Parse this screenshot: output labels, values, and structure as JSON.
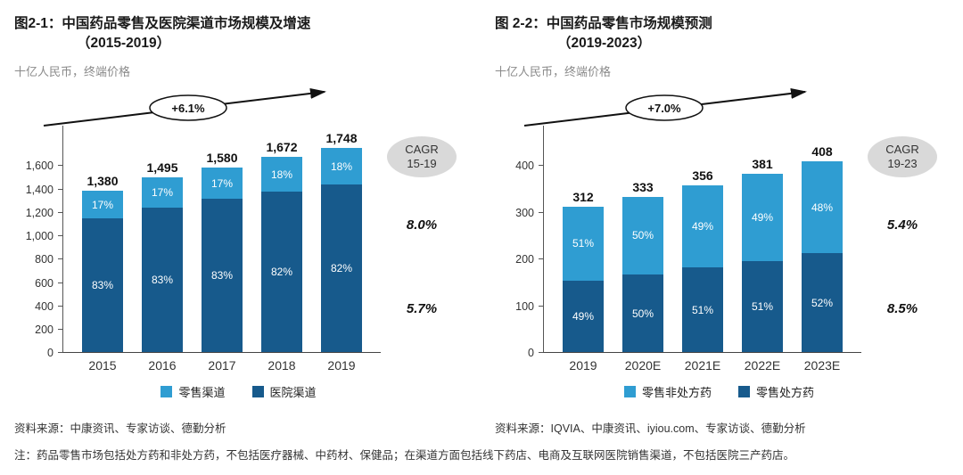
{
  "page": {
    "note": "注：药品零售市场包括处方药和非处方药，不包括医疗器械、中药材、保健品；在渠道方面包括线下药店、电商及互联网医院销售渠道，不包括医院三产药店。"
  },
  "chart_data": [
    {
      "type": "bar",
      "stacked": true,
      "title": "图2-1：中国药品零售及医院渠道市场规模及增速",
      "title_line2": "（2015-2019）",
      "unit_label": "十亿人民币，终端价格",
      "growth_label": "+6.1%",
      "cagr_label1": "CAGR",
      "cagr_label2": "15-19",
      "categories": [
        "2015",
        "2016",
        "2017",
        "2018",
        "2019"
      ],
      "totals": [
        1380,
        1495,
        1580,
        1672,
        1748
      ],
      "totals_display": [
        "1,380",
        "1,495",
        "1,580",
        "1,672",
        "1,748"
      ],
      "series": [
        {
          "name": "零售渠道",
          "color": "#2f9dd2",
          "pct": [
            17,
            17,
            17,
            18,
            18
          ],
          "cagr": "8.0%"
        },
        {
          "name": "医院渠道",
          "color": "#175a8c",
          "pct": [
            83,
            83,
            83,
            82,
            82
          ],
          "cagr": "5.7%"
        }
      ],
      "ylim": [
        0,
        1600
      ],
      "yticks": [
        "0",
        "200",
        "400",
        "600",
        "800",
        "1,000",
        "1,200",
        "1,400",
        "1,600"
      ],
      "legend_position": "bottom",
      "grid": false,
      "source": "资料来源：中康资讯、专家访谈、德勤分析"
    },
    {
      "type": "bar",
      "stacked": true,
      "title": "图 2-2：中国药品零售市场规模预测",
      "title_line2": "（2019-2023）",
      "unit_label": "十亿人民币，终端价格",
      "growth_label": "+7.0%",
      "cagr_label1": "CAGR",
      "cagr_label2": "19-23",
      "categories": [
        "2019",
        "2020E",
        "2021E",
        "2022E",
        "2023E"
      ],
      "totals": [
        312,
        333,
        356,
        381,
        408
      ],
      "totals_display": [
        "312",
        "333",
        "356",
        "381",
        "408"
      ],
      "series": [
        {
          "name": "零售非处方药",
          "color": "#2f9dd2",
          "pct": [
            51,
            50,
            49,
            49,
            48
          ],
          "cagr": "5.4%"
        },
        {
          "name": "零售处方药",
          "color": "#175a8c",
          "pct": [
            49,
            50,
            51,
            51,
            52
          ],
          "cagr": "8.5%"
        }
      ],
      "ylim": [
        0,
        400
      ],
      "yticks": [
        "0",
        "100",
        "200",
        "300",
        "400"
      ],
      "legend_position": "bottom",
      "grid": false,
      "source": "资料来源：IQVIA、中康资讯、iyiou.com、专家访谈、德勤分析"
    }
  ]
}
